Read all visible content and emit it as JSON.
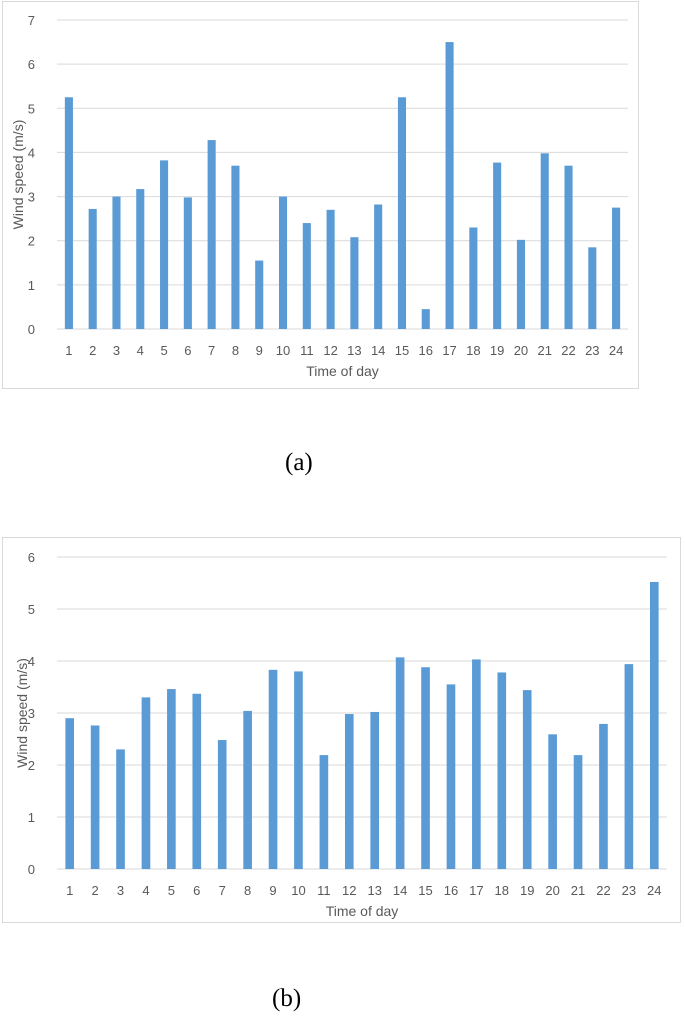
{
  "bar_color": "#5b9bd5",
  "grid_color": "#d9d9d9",
  "text_color": "#595959",
  "captions": {
    "a": "(a)",
    "b": "(b)"
  },
  "chart_data": [
    {
      "type": "bar",
      "categories": [
        "1",
        "2",
        "3",
        "4",
        "5",
        "6",
        "7",
        "8",
        "9",
        "10",
        "11",
        "12",
        "13",
        "14",
        "15",
        "16",
        "17",
        "18",
        "19",
        "20",
        "21",
        "22",
        "23",
        "24"
      ],
      "values": [
        5.25,
        2.72,
        3.0,
        3.17,
        3.82,
        2.98,
        4.28,
        3.7,
        1.55,
        3.0,
        2.4,
        2.7,
        2.08,
        2.82,
        5.25,
        0.45,
        6.5,
        2.3,
        3.77,
        2.02,
        3.98,
        3.7,
        1.85,
        2.75
      ],
      "title": "",
      "xlabel": "Time of day",
      "ylabel": "Wind speed (m/s)",
      "ylim": [
        0,
        7
      ],
      "yticks": [
        "0",
        "1",
        "2",
        "3",
        "4",
        "5",
        "6",
        "7"
      ],
      "grid": "horizontal",
      "legend": "none"
    },
    {
      "type": "bar",
      "categories": [
        "1",
        "2",
        "3",
        "4",
        "5",
        "6",
        "7",
        "8",
        "9",
        "10",
        "11",
        "12",
        "13",
        "14",
        "15",
        "16",
        "17",
        "18",
        "19",
        "20",
        "21",
        "22",
        "23",
        "24"
      ],
      "values": [
        2.9,
        2.76,
        2.3,
        3.3,
        3.46,
        3.37,
        2.48,
        3.04,
        3.83,
        3.8,
        2.19,
        2.98,
        3.02,
        4.07,
        3.88,
        3.55,
        4.03,
        3.78,
        3.44,
        2.59,
        2.19,
        2.79,
        3.94,
        5.52
      ],
      "title": "",
      "xlabel": "Time of day",
      "ylabel": "Wind speed (m/s)",
      "ylim": [
        0,
        6
      ],
      "yticks": [
        "0",
        "1",
        "2",
        "3",
        "4",
        "5",
        "6"
      ],
      "grid": "horizontal",
      "legend": "none"
    }
  ]
}
